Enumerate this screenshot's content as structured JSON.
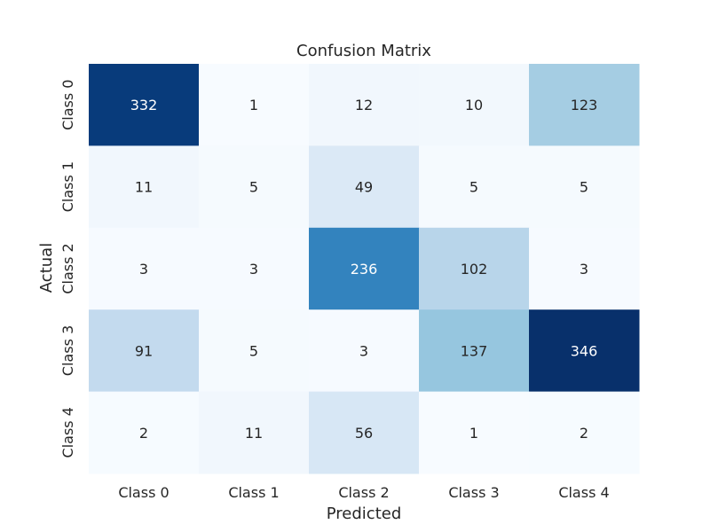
{
  "chart_data": {
    "type": "heatmap",
    "title": "Confusion Matrix",
    "xlabel": "Predicted",
    "ylabel": "Actual",
    "x_categories": [
      "Class 0",
      "Class 1",
      "Class 2",
      "Class 3",
      "Class 4"
    ],
    "y_categories": [
      "Class 0",
      "Class 1",
      "Class 2",
      "Class 3",
      "Class 4"
    ],
    "values": [
      [
        332,
        1,
        12,
        10,
        123
      ],
      [
        11,
        5,
        49,
        5,
        5
      ],
      [
        3,
        3,
        236,
        102,
        3
      ],
      [
        91,
        5,
        3,
        137,
        346
      ],
      [
        2,
        11,
        56,
        1,
        2
      ]
    ],
    "colormap": "Blues",
    "color_low": "#f7fbff",
    "color_high": "#08306b",
    "text_dark": "#262626",
    "text_light": "#ffffff",
    "colorbar": false,
    "grid": false
  }
}
